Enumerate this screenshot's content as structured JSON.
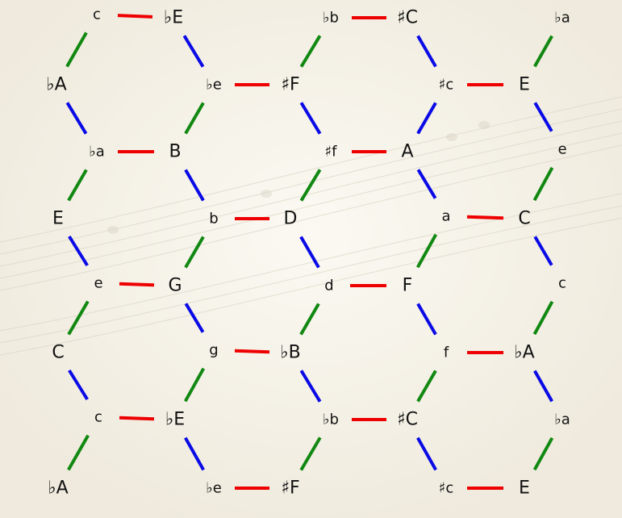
{
  "colors": {
    "red": "#ee0000",
    "green": "#118811",
    "blue": "#0a0ae6"
  },
  "watermark": "",
  "nodes": {
    "n1": {
      "t": "c"
    },
    "n2": {
      "t": "♭E"
    },
    "n3": {
      "t": "♭b"
    },
    "n4": {
      "t": "♯C"
    },
    "n5": {
      "t": "♭a"
    },
    "n6": {
      "t": "♭A"
    },
    "n7": {
      "t": "♭e"
    },
    "n8": {
      "t": "♯F"
    },
    "n9": {
      "t": "♯c"
    },
    "n10": {
      "t": "E"
    },
    "n11": {
      "t": "♭a"
    },
    "n12": {
      "t": "B"
    },
    "n13": {
      "t": "♯f"
    },
    "n14": {
      "t": "A"
    },
    "n15": {
      "t": "e"
    },
    "n16": {
      "t": "E"
    },
    "n17": {
      "t": "b"
    },
    "n18": {
      "t": "D"
    },
    "n19": {
      "t": "a"
    },
    "n20": {
      "t": "C"
    },
    "n21": {
      "t": "e"
    },
    "n22": {
      "t": "G"
    },
    "n23": {
      "t": "d"
    },
    "n24": {
      "t": "F"
    },
    "n25": {
      "t": "c"
    },
    "n26": {
      "t": "C"
    },
    "n27": {
      "t": "g"
    },
    "n28": {
      "t": "♭B"
    },
    "n29": {
      "t": "f"
    },
    "n30": {
      "t": "♭A"
    },
    "n31": {
      "t": "c"
    },
    "n32": {
      "t": "♭E"
    },
    "n33": {
      "t": "♭b"
    },
    "n34": {
      "t": "♯C"
    },
    "n35": {
      "t": "♭a"
    },
    "n36": {
      "t": "♭A"
    },
    "n37": {
      "t": "♭e"
    },
    "n38": {
      "t": "♯F"
    },
    "n39": {
      "t": "♯c"
    },
    "n40": {
      "t": "E"
    }
  },
  "edges": [
    [
      "n1",
      "n2",
      "red"
    ],
    [
      "n3",
      "n4",
      "red"
    ],
    [
      "n7",
      "n8",
      "red"
    ],
    [
      "n9",
      "n10",
      "red"
    ],
    [
      "n11",
      "n12",
      "red"
    ],
    [
      "n13",
      "n14",
      "red"
    ],
    [
      "n17",
      "n18",
      "red"
    ],
    [
      "n19",
      "n20",
      "red"
    ],
    [
      "n21",
      "n22",
      "red"
    ],
    [
      "n23",
      "n24",
      "red"
    ],
    [
      "n27",
      "n28",
      "red"
    ],
    [
      "n29",
      "n30",
      "red"
    ],
    [
      "n31",
      "n32",
      "red"
    ],
    [
      "n33",
      "n34",
      "red"
    ],
    [
      "n37",
      "n38",
      "red"
    ],
    [
      "n39",
      "n40",
      "red"
    ],
    [
      "n1",
      "n6",
      "green"
    ],
    [
      "n3",
      "n8",
      "green"
    ],
    [
      "n5",
      "n10",
      "green"
    ],
    [
      "n7",
      "n12",
      "green"
    ],
    [
      "n11",
      "n16",
      "green"
    ],
    [
      "n13",
      "n18",
      "green"
    ],
    [
      "n15",
      "n20",
      "green"
    ],
    [
      "n12",
      "n17",
      "blue"
    ],
    [
      "n8",
      "n13",
      "blue"
    ],
    [
      "n9",
      "n14",
      "blue"
    ],
    [
      "n10",
      "n15",
      "blue"
    ],
    [
      "n2",
      "n7",
      "blue"
    ],
    [
      "n4",
      "n9",
      "blue"
    ],
    [
      "n6",
      "n11",
      "blue"
    ],
    [
      "n16",
      "n21",
      "blue"
    ],
    [
      "n17",
      "n22",
      "green"
    ],
    [
      "n18",
      "n23",
      "blue"
    ],
    [
      "n19",
      "n24",
      "green"
    ],
    [
      "n14",
      "n19",
      "blue"
    ],
    [
      "n20",
      "n25",
      "blue"
    ],
    [
      "n21",
      "n26",
      "green"
    ],
    [
      "n22",
      "n27",
      "blue"
    ],
    [
      "n23",
      "n28",
      "green"
    ],
    [
      "n24",
      "n29",
      "blue"
    ],
    [
      "n25",
      "n30",
      "green"
    ],
    [
      "n26",
      "n31",
      "blue"
    ],
    [
      "n27",
      "n32",
      "green"
    ],
    [
      "n28",
      "n33",
      "blue"
    ],
    [
      "n29",
      "n34",
      "green"
    ],
    [
      "n30",
      "n35",
      "blue"
    ],
    [
      "n31",
      "n36",
      "green"
    ],
    [
      "n32",
      "n37",
      "blue"
    ],
    [
      "n33",
      "n38",
      "green"
    ],
    [
      "n34",
      "n39",
      "blue"
    ],
    [
      "n35",
      "n40",
      "green"
    ]
  ]
}
